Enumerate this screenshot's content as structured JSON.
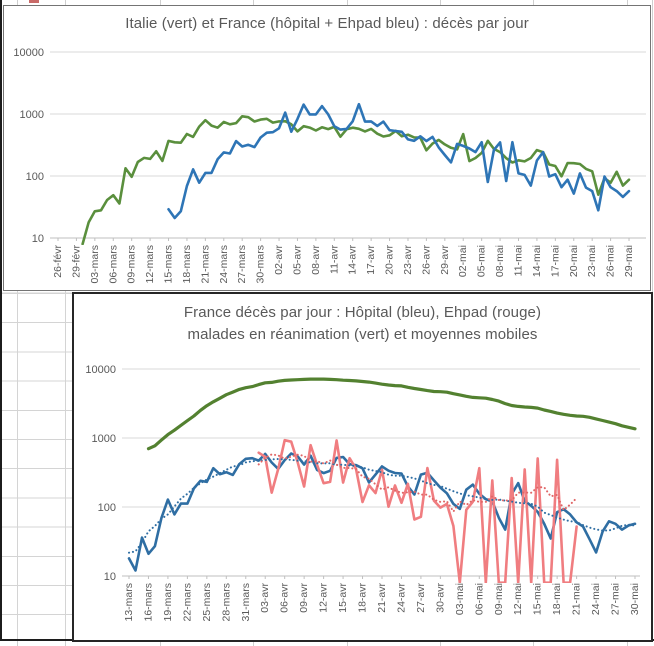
{
  "sheet": {
    "grid_color": "#d4d4d4",
    "border_color": "#1c1c1c"
  },
  "chart_data": [
    {
      "type": "line",
      "title": "Italie (vert) et France (hôpital + Ehpad bleu) : décès par jour",
      "y_scale": "log",
      "ylim": [
        10,
        10000
      ],
      "grid": true,
      "legend_position": "none",
      "grid_color": "#d9d9d9",
      "axis_color": "#bfbfbf",
      "text_color": "#595959",
      "y_ticks": [
        10,
        100,
        1000,
        10000
      ],
      "y_tick_labels": [
        "10",
        "100",
        "1000",
        "10000"
      ],
      "tick_every_days": 3,
      "x_tick_labels": [
        "26-févr",
        "29-févr",
        "03-mars",
        "06-mars",
        "09-mars",
        "12-mars",
        "15-mars",
        "18-mars",
        "21-mars",
        "24-mars",
        "27-mars",
        "30-mars",
        "02-avr",
        "05-avr",
        "08-avr",
        "11-avr",
        "14-avr",
        "17-avr",
        "20-avr",
        "23-avr",
        "26-avr",
        "29-avr",
        "02-mai",
        "05-mai",
        "08-mai",
        "11-mai",
        "14-mai",
        "17-mai",
        "20-mai",
        "23-mai",
        "26-mai",
        "29-mai"
      ],
      "series": [
        {
          "name": "Italie",
          "color": "#5a8f3d",
          "width": 2.6,
          "values": [
            null,
            null,
            null,
            null,
            5,
            18,
            27,
            28,
            41,
            49,
            36,
            133,
            97,
            168,
            196,
            189,
            250,
            175,
            368,
            349,
            345,
            475,
            427,
            627,
            793,
            651,
            601,
            743,
            683,
            712,
            919,
            889,
            756,
            812,
            837,
            727,
            760,
            766,
            681,
            525,
            636,
            604,
            542,
            610,
            570,
            619,
            431,
            566,
            602,
            578,
            525,
            575,
            482,
            433,
            454,
            534,
            437,
            464,
            420,
            415,
            260,
            333,
            382,
            323,
            285,
            269,
            474,
            174,
            195,
            236,
            369,
            274,
            243,
            194,
            165,
            179,
            172,
            195,
            262,
            242,
            153,
            145,
            99,
            162,
            161,
            156,
            130,
            119,
            50,
            92,
            78,
            117,
            70,
            87
          ]
        },
        {
          "name": "France hôpital + Ehpad",
          "color": "#2e75b6",
          "width": 2.6,
          "values": [
            null,
            null,
            null,
            null,
            null,
            null,
            null,
            null,
            null,
            null,
            null,
            null,
            null,
            null,
            null,
            null,
            null,
            null,
            29,
            21,
            27,
            69,
            128,
            78,
            112,
            112,
            186,
            240,
            231,
            365,
            299,
            319,
            292,
            418,
            499,
            509,
            588,
            1053,
            518,
            833,
            1417,
            984,
            987,
            1341,
            987,
            635,
            561,
            574,
            762,
            1438,
            753,
            761,
            642,
            753,
            547,
            531,
            516,
            389,
            369,
            437,
            367,
            427,
            289,
            218,
            166,
            330,
            306,
            278,
            243,
            351,
            80,
            263,
            348,
            83,
            351,
            110,
            104,
            70,
            178,
            243,
            98,
            107,
            66,
            87,
            52,
            110,
            65,
            57,
            28,
            98,
            66,
            57,
            46,
            57
          ]
        }
      ]
    },
    {
      "type": "line",
      "title": "France décès par jour : Hôpital (bleu), Ehpad (rouge)",
      "title2": "malades en réanimation (vert) et moyennes mobiles",
      "y_scale": "log",
      "ylim": [
        10,
        10000
      ],
      "grid": true,
      "legend_position": "none",
      "grid_color": "#d9d9d9",
      "axis_color": "#bfbfbf",
      "text_color": "#595959",
      "y_ticks": [
        10,
        100,
        1000,
        10000
      ],
      "y_tick_labels": [
        "10",
        "100",
        "1000",
        "10000"
      ],
      "tick_every_days": 3,
      "x_tick_labels": [
        "13-mars",
        "16-mars",
        "19-mars",
        "22-mars",
        "25-mars",
        "28-mars",
        "31-mars",
        "03-avr",
        "06-avr",
        "09-avr",
        "12-avr",
        "15-avr",
        "18-avr",
        "21-avr",
        "24-avr",
        "27-avr",
        "30-avr",
        "03-mai",
        "06-mai",
        "09-mai",
        "12-mai",
        "15-mai",
        "18-mai",
        "21-mai",
        "24-mai",
        "27-mai",
        "30-mai"
      ],
      "series": [
        {
          "name": "Malades en réanimation",
          "color": "#538130",
          "width": 3.2,
          "values": [
            null,
            null,
            null,
            699,
            771,
            931,
            1122,
            1297,
            1525,
            1786,
            2082,
            2516,
            2935,
            3351,
            3758,
            4236,
            4632,
            5056,
            5360,
            5565,
            5940,
            6305,
            6399,
            6662,
            6838,
            6937,
            7004,
            7066,
            7131,
            7148,
            7132,
            7072,
            7004,
            6883,
            6821,
            6730,
            6599,
            6457,
            6248,
            6027,
            5863,
            5744,
            5683,
            5433,
            5218,
            5053,
            4870,
            4725,
            4682,
            4608,
            4387,
            4207,
            4019,
            3878,
            3819,
            3769,
            3610,
            3430,
            3147,
            2961,
            2868,
            2811,
            2776,
            2712,
            2542,
            2428,
            2299,
            2203,
            2132,
            2087,
            2062,
            1998,
            1894,
            1794,
            1701,
            1609,
            1501,
            1430,
            1361
          ]
        },
        {
          "name": "Hôpital",
          "color": "#2f6ea3",
          "width": 2.6,
          "values": [
            18,
            12,
            36,
            21,
            27,
            69,
            128,
            78,
            112,
            112,
            186,
            240,
            231,
            365,
            299,
            319,
            292,
            418,
            499,
            509,
            471,
            588,
            441,
            357,
            478,
            597,
            541,
            412,
            554,
            345,
            310,
            335,
            514,
            531,
            417,
            405,
            364,
            227,
            295,
            387,
            336,
            311,
            305,
            198,
            152,
            295,
            313,
            243,
            191,
            158,
            111,
            94,
            178,
            211,
            156,
            130,
            120,
            70,
            47,
            154,
            222,
            122,
            104,
            85,
            57,
            35,
            84,
            93,
            78,
            60,
            52,
            34,
            22,
            44,
            62,
            57,
            47,
            54,
            57
          ]
        },
        {
          "name": "Ehpad",
          "color": "#f07d80",
          "width": 2.6,
          "values": [
            null,
            null,
            null,
            null,
            null,
            null,
            null,
            null,
            null,
            null,
            null,
            null,
            null,
            null,
            null,
            null,
            null,
            null,
            null,
            null,
            612,
            532,
            161,
            355,
            930,
            884,
            443,
            198,
            787,
            408,
            221,
            231,
            924,
            226,
            510,
            356,
            118,
            206,
            159,
            347,
            101,
            205,
            115,
            217,
            66,
            72,
            367,
            124,
            98,
            111,
            53,
            5,
            91,
            119,
            365,
            4,
            243,
            2,
            5,
            263,
            2,
            351,
            3,
            506,
            2,
            2,
            483,
            2,
            2,
            52,
            null,
            null,
            null,
            null,
            null,
            null,
            null,
            null,
            null
          ]
        },
        {
          "name": "Moyenne mobile hôpital",
          "color": "#2f6ea3",
          "width": 2,
          "style": "dotted",
          "ma_of": 1,
          "window": 7
        },
        {
          "name": "Moyenne mobile Ehpad",
          "color": "#e06666",
          "width": 2,
          "style": "dotted",
          "ma_of": 2,
          "window": 7
        }
      ]
    }
  ]
}
